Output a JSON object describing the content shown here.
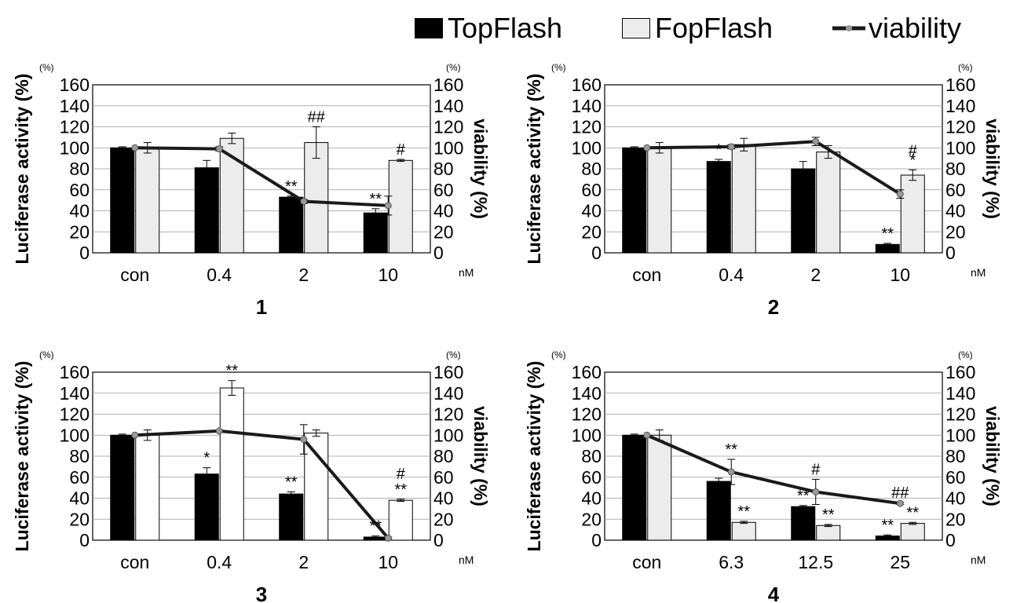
{
  "legend": {
    "top": "TopFlash",
    "fop": "FopFlash",
    "viability": "viability",
    "top_color": "#000000",
    "fop_color": "#ececec",
    "line_color": "#1a1a1a",
    "marker_color": "#9a9a9a"
  },
  "chart_data": [
    {
      "type": "bar",
      "title": "1",
      "categories": [
        "con",
        "0.4",
        "2",
        "10"
      ],
      "x_unit": "nM",
      "ylabel": "Luciferase activity (%)",
      "y2label": "viability (%)",
      "y_unit": "(%)",
      "ylim": [
        0,
        160
      ],
      "y_ticks": [
        0,
        20,
        40,
        60,
        80,
        100,
        120,
        140,
        160
      ],
      "fop_fill": "#ececec",
      "series": [
        {
          "name": "TopFlash",
          "kind": "bar",
          "values": [
            100,
            81,
            53,
            38
          ],
          "errors": [
            1,
            7,
            1,
            4
          ]
        },
        {
          "name": "FopFlash",
          "kind": "bar",
          "values": [
            100,
            109,
            105,
            88
          ],
          "errors": [
            5,
            5,
            15,
            1
          ]
        },
        {
          "name": "viability",
          "kind": "line",
          "axis": "right",
          "values": [
            100,
            99,
            49,
            45
          ],
          "errors": [
            0,
            2,
            2,
            9
          ]
        }
      ],
      "annotations": [
        {
          "category": 2,
          "series": "TopFlash",
          "text": "**"
        },
        {
          "category": 3,
          "series": "TopFlash",
          "text": "**"
        },
        {
          "category": 2,
          "series": "FopFlash",
          "text": "##"
        },
        {
          "category": 3,
          "series": "FopFlash",
          "text": "#"
        }
      ]
    },
    {
      "type": "bar",
      "title": "2",
      "categories": [
        "con",
        "0.4",
        "2",
        "10"
      ],
      "x_unit": "nM",
      "ylabel": "Luciferase activity (%)",
      "y2label": "viability (%)",
      "y_unit": "(%)",
      "ylim": [
        0,
        160
      ],
      "y_ticks": [
        0,
        20,
        40,
        60,
        80,
        100,
        120,
        140,
        160
      ],
      "fop_fill": "#ececec",
      "series": [
        {
          "name": "TopFlash",
          "kind": "bar",
          "values": [
            100,
            87,
            80,
            8
          ],
          "errors": [
            1,
            2,
            7,
            1
          ]
        },
        {
          "name": "FopFlash",
          "kind": "bar",
          "values": [
            100,
            103,
            96,
            74
          ],
          "errors": [
            5,
            6,
            6,
            5
          ]
        },
        {
          "name": "viability",
          "kind": "line",
          "axis": "right",
          "values": [
            100,
            101,
            106,
            56
          ],
          "errors": [
            0,
            2,
            4,
            4
          ]
        }
      ],
      "annotations": [
        {
          "category": 1,
          "series": "TopFlash",
          "text": "*"
        },
        {
          "category": 3,
          "series": "TopFlash",
          "text": "**"
        },
        {
          "category": 3,
          "series": "FopFlash",
          "text": "*"
        },
        {
          "category": 3,
          "series": "FopFlash",
          "text": "#",
          "offset": -12
        }
      ]
    },
    {
      "type": "bar",
      "title": "3",
      "categories": [
        "con",
        "0.4",
        "2",
        "10"
      ],
      "x_unit": "nM",
      "ylabel": "Luciferase activity (%)",
      "y2label": "viability (%)",
      "y_unit": "(%)",
      "ylim": [
        0,
        160
      ],
      "y_ticks": [
        0,
        20,
        40,
        60,
        80,
        100,
        120,
        140,
        160
      ],
      "fop_fill": "#ffffff",
      "series": [
        {
          "name": "TopFlash",
          "kind": "bar",
          "values": [
            100,
            63,
            44,
            3
          ],
          "errors": [
            1,
            6,
            2,
            1
          ]
        },
        {
          "name": "FopFlash",
          "kind": "bar",
          "values": [
            100,
            145,
            102,
            38
          ],
          "errors": [
            5,
            7,
            3,
            1
          ]
        },
        {
          "name": "viability",
          "kind": "line",
          "axis": "right",
          "values": [
            100,
            104,
            96,
            2
          ],
          "errors": [
            0,
            1,
            14,
            1
          ]
        }
      ],
      "annotations": [
        {
          "category": 1,
          "series": "TopFlash",
          "text": "*"
        },
        {
          "category": 2,
          "series": "TopFlash",
          "text": "**"
        },
        {
          "category": 3,
          "series": "TopFlash",
          "text": "**"
        },
        {
          "category": 1,
          "series": "FopFlash",
          "text": "**"
        },
        {
          "category": 3,
          "series": "FopFlash",
          "text": "**"
        },
        {
          "category": 3,
          "series": "FopFlash",
          "text": "#",
          "offset": -20
        }
      ]
    },
    {
      "type": "bar",
      "title": "4",
      "categories": [
        "con",
        "6.3",
        "12.5",
        "25"
      ],
      "x_unit": "nM",
      "ylabel": "Luciferase activity (%)",
      "y2label": "viability (%)",
      "y_unit": "(%)",
      "ylim": [
        0,
        160
      ],
      "y_ticks": [
        0,
        20,
        40,
        60,
        80,
        100,
        120,
        140,
        160
      ],
      "fop_fill": "#ececec",
      "series": [
        {
          "name": "TopFlash",
          "kind": "bar",
          "values": [
            100,
            56,
            32,
            4
          ],
          "errors": [
            1,
            3,
            1,
            1
          ]
        },
        {
          "name": "FopFlash",
          "kind": "bar",
          "values": [
            100,
            17,
            14,
            16
          ],
          "errors": [
            5,
            1,
            1,
            1
          ]
        },
        {
          "name": "viability",
          "kind": "line",
          "axis": "right",
          "values": [
            100,
            65,
            46,
            35
          ],
          "errors": [
            0,
            12,
            12,
            1
          ]
        }
      ],
      "annotations": [
        {
          "category": 2,
          "series": "TopFlash",
          "text": "**"
        },
        {
          "category": 3,
          "series": "TopFlash",
          "text": "**"
        },
        {
          "category": 1,
          "series": "FopFlash",
          "text": "**"
        },
        {
          "category": 2,
          "series": "FopFlash",
          "text": "**"
        },
        {
          "category": 3,
          "series": "FopFlash",
          "text": "**"
        },
        {
          "category": 1,
          "series": "viability",
          "text": "**"
        },
        {
          "category": 2,
          "series": "viability",
          "text": "#"
        },
        {
          "category": 3,
          "series": "viability",
          "text": "##"
        }
      ]
    }
  ]
}
